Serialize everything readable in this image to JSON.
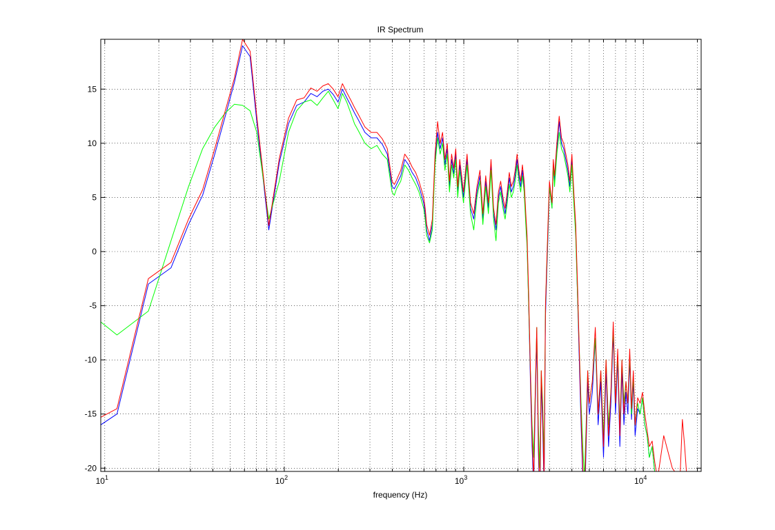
{
  "chart_data": {
    "type": "line",
    "title": "IR Spectrum",
    "xlabel": "frequency (Hz)",
    "ylabel": "",
    "x_scale": "log",
    "xlim": [
      9.5,
      21000
    ],
    "ylim": [
      -20.3,
      19.6
    ],
    "grid": true,
    "grid_style": "dotted",
    "legend": "none",
    "x_major_ticks": [
      {
        "value": 10,
        "base": "10",
        "exp": "1"
      },
      {
        "value": 100,
        "base": "10",
        "exp": "2"
      },
      {
        "value": 1000,
        "base": "10",
        "exp": "3"
      },
      {
        "value": 10000,
        "base": "10",
        "exp": "4"
      }
    ],
    "y_ticks": [
      {
        "value": 15,
        "label": "15"
      },
      {
        "value": 10,
        "label": "10"
      },
      {
        "value": 5,
        "label": "5"
      },
      {
        "value": 0,
        "label": "0"
      },
      {
        "value": -5,
        "label": "-5"
      },
      {
        "value": -10,
        "label": "-10"
      },
      {
        "value": -15,
        "label": "-15"
      },
      {
        "value": -20,
        "label": "-20"
      }
    ],
    "series": [
      {
        "color": "#0000ff",
        "x": [
          9.5,
          11.7,
          17.5,
          23.4,
          29.3,
          35.1,
          41.0,
          46.9,
          52.7,
          58.6,
          64.5,
          70.3,
          82.0,
          93.8,
          105.5,
          117.2,
          129.0,
          140.6,
          152.4,
          164.1,
          175.8,
          187.5,
          199.2,
          210.9,
          222.7,
          234.4,
          246.1,
          257.8,
          281.3,
          304.7,
          328.1,
          351.6,
          375.0,
          398.4,
          410.2,
          421.9,
          445.3,
          468.8,
          492.2,
          515.6,
          539.1,
          562.5,
          585.9,
          597.7,
          609.4,
          621.1,
          644.5,
          668.0,
          691.4,
          714.8,
          738.3,
          761.7,
          785.2,
          808.6,
          832.0,
          855.5,
          879.0,
          902.3,
          925.8,
          949.2,
          996.1,
          1043.0,
          1089.8,
          1136.7,
          1183.6,
          1230.5,
          1277.3,
          1324.2,
          1371.1,
          1418.0,
          1464.8,
          1511.7,
          1558.6,
          1605.5,
          1652.3,
          1699.2,
          1746.1,
          1793.0,
          1839.8,
          1886.7,
          1933.6,
          1980.5,
          2027.3,
          2074.2,
          2121.1,
          2168.0,
          2214.8,
          2250.0,
          2300.0,
          2350.0,
          2400.0,
          2450.0,
          2500.0,
          2550.0,
          2600.0,
          2650.0,
          2700.0,
          2750.0,
          2800.0,
          2850.0,
          2900.0,
          2950.0,
          3000.0,
          3050.0,
          3100.0,
          3150.0,
          3200.0,
          3300.0,
          3400.0,
          3500.0,
          3600.0,
          3700.0,
          3800.0,
          3900.0,
          4000.0,
          4100.0,
          4200.0,
          4300.0,
          4400.0,
          4500.0,
          4600.0,
          4700.0,
          4800.0,
          4900.0,
          5000.0,
          5200.0,
          5400.0,
          5600.0,
          5800.0,
          6000.0,
          6200.0,
          6400.0,
          6600.0,
          6800.0,
          7000.0,
          7200.0,
          7400.0,
          7600.0,
          7800.0,
          8000.0,
          8200.0,
          8400.0,
          8600.0,
          8800.0,
          9000.0,
          9300.0,
          9600.0,
          9900.0,
          10200.0,
          10500.0,
          10800.0,
          11200.0,
          11600.0,
          12000.0
        ],
        "y": [
          -16.0,
          -15.0,
          -3.0,
          -1.5,
          2.5,
          5.2,
          9.0,
          12.5,
          15.6,
          19.0,
          18.0,
          12.0,
          2.0,
          8.2,
          11.8,
          13.5,
          13.8,
          14.6,
          14.3,
          14.8,
          15.0,
          14.5,
          13.8,
          15.0,
          14.2,
          13.5,
          12.8,
          12.2,
          11.0,
          10.5,
          10.5,
          9.9,
          9.0,
          6.0,
          5.8,
          6.2,
          7.0,
          8.5,
          8.0,
          7.3,
          6.8,
          6.0,
          5.0,
          4.5,
          3.5,
          2.0,
          1.0,
          2.5,
          8.5,
          11.0,
          9.5,
          10.5,
          8.0,
          9.5,
          6.0,
          8.5,
          7.2,
          9.0,
          5.5,
          8.0,
          5.0,
          8.5,
          4.0,
          3.0,
          5.5,
          7.0,
          3.0,
          6.5,
          4.0,
          8.0,
          3.5,
          2.0,
          5.0,
          6.0,
          4.5,
          3.5,
          5.0,
          6.8,
          5.5,
          6.0,
          7.0,
          8.5,
          7.0,
          6.0,
          7.5,
          6.0,
          3.0,
          1.0,
          -5.0,
          -12.0,
          -18.0,
          -22.0,
          -14.0,
          -8.0,
          -18.0,
          -24.0,
          -12.0,
          -16.0,
          -22.0,
          -6.0,
          -2.0,
          2.0,
          6.0,
          5.0,
          4.0,
          8.0,
          6.5,
          9.5,
          12.0,
          10.0,
          9.5,
          8.5,
          7.5,
          6.0,
          8.5,
          5.0,
          2.0,
          -4.0,
          -10.0,
          -16.0,
          -21.0,
          -24.0,
          -18.0,
          -12.0,
          -15.0,
          -13.0,
          -8.0,
          -16.0,
          -12.0,
          -19.0,
          -11.0,
          -18.0,
          -14.0,
          -7.5,
          -15.0,
          -10.0,
          -18.0,
          -11.0,
          -16.0,
          -13.0,
          -15.0,
          -10.0,
          -15.5,
          -12.0,
          -17.0,
          -14.5,
          -15.0,
          -13.5,
          -16.0,
          -17.0,
          -19.0,
          -18.0,
          -20.5,
          -22.0
        ]
      },
      {
        "color": "#00ff00",
        "x": [
          9.5,
          11.7,
          17.5,
          23.4,
          29.3,
          35.1,
          41.0,
          46.9,
          52.7,
          58.6,
          64.5,
          70.3,
          82.0,
          93.8,
          105.5,
          117.2,
          129.0,
          140.6,
          152.4,
          164.1,
          175.8,
          187.5,
          199.2,
          210.9,
          222.7,
          234.4,
          246.1,
          257.8,
          281.3,
          304.7,
          328.1,
          351.6,
          375.0,
          398.4,
          410.2,
          421.9,
          445.3,
          468.8,
          492.2,
          515.6,
          539.1,
          562.5,
          585.9,
          597.7,
          609.4,
          621.1,
          644.5,
          668.0,
          691.4,
          714.8,
          738.3,
          761.7,
          785.2,
          808.6,
          832.0,
          855.5,
          879.0,
          902.3,
          925.8,
          949.2,
          996.1,
          1043.0,
          1089.8,
          1136.7,
          1183.6,
          1230.5,
          1277.3,
          1324.2,
          1371.1,
          1418.0,
          1464.8,
          1511.7,
          1558.6,
          1605.5,
          1652.3,
          1699.2,
          1746.1,
          1793.0,
          1839.8,
          1886.7,
          1933.6,
          1980.5,
          2027.3,
          2074.2,
          2121.1,
          2168.0,
          2214.8,
          2250.0,
          2300.0,
          2350.0,
          2400.0,
          2450.0,
          2500.0,
          2550.0,
          2600.0,
          2650.0,
          2700.0,
          2750.0,
          2800.0,
          2850.0,
          2900.0,
          2950.0,
          3000.0,
          3050.0,
          3100.0,
          3150.0,
          3200.0,
          3300.0,
          3400.0,
          3500.0,
          3600.0,
          3700.0,
          3800.0,
          3900.0,
          4000.0,
          4100.0,
          4200.0,
          4300.0,
          4400.0,
          4500.0,
          4600.0,
          4700.0,
          4800.0,
          4900.0,
          5000.0,
          5200.0,
          5400.0,
          5600.0,
          5800.0,
          6000.0,
          6200.0,
          6400.0,
          6600.0,
          6800.0,
          7000.0,
          7200.0,
          7400.0,
          7600.0,
          7800.0,
          8000.0,
          8200.0,
          8400.0,
          8600.0,
          8800.0,
          9000.0,
          9300.0,
          9600.0,
          9900.0,
          10200.0,
          10500.0,
          10800.0,
          11200.0,
          11600.0,
          12000.0
        ],
        "y": [
          -6.5,
          -7.7,
          -5.5,
          1.0,
          6.0,
          9.5,
          11.5,
          12.8,
          13.6,
          13.5,
          13.0,
          11.0,
          3.0,
          6.5,
          11.0,
          13.0,
          13.8,
          14.0,
          13.5,
          14.2,
          14.8,
          14.0,
          13.2,
          14.6,
          13.8,
          12.8,
          11.8,
          11.2,
          10.0,
          9.5,
          9.8,
          9.0,
          8.5,
          5.5,
          5.2,
          5.8,
          6.5,
          8.0,
          7.5,
          6.8,
          6.2,
          5.5,
          4.5,
          4.0,
          3.0,
          1.5,
          0.8,
          2.0,
          8.0,
          10.5,
          9.0,
          10.0,
          7.5,
          9.0,
          5.5,
          8.0,
          6.8,
          8.5,
          5.0,
          7.5,
          4.5,
          8.0,
          3.5,
          2.0,
          5.0,
          6.5,
          2.5,
          6.0,
          3.5,
          7.5,
          3.0,
          1.0,
          4.5,
          5.5,
          4.0,
          3.0,
          4.5,
          6.2,
          5.0,
          5.5,
          6.5,
          8.0,
          6.5,
          5.5,
          7.0,
          5.5,
          2.5,
          0.5,
          -5.0,
          -11.0,
          -16.0,
          -19.0,
          -13.0,
          -7.0,
          -16.0,
          -20.0,
          -11.0,
          -14.0,
          -19.0,
          -5.0,
          -1.5,
          2.5,
          6.0,
          5.0,
          4.0,
          8.0,
          6.0,
          9.0,
          11.0,
          9.5,
          9.0,
          8.0,
          7.0,
          5.5,
          8.0,
          4.5,
          1.5,
          -4.0,
          -9.0,
          -14.0,
          -18.0,
          -21.0,
          -16.0,
          -11.0,
          -14.0,
          -12.0,
          -8.0,
          -15.0,
          -11.0,
          -17.0,
          -10.0,
          -16.0,
          -13.0,
          -7.0,
          -14.0,
          -9.5,
          -16.0,
          -10.0,
          -14.0,
          -12.0,
          -14.0,
          -9.5,
          -15.0,
          -11.5,
          -16.0,
          -14.0,
          -15.0,
          -13.5,
          -16.0,
          -17.0,
          -19.0,
          -18.0,
          -20.5,
          -21.5
        ]
      },
      {
        "color": "#ff0000",
        "x": [
          9.5,
          11.7,
          17.5,
          23.4,
          29.3,
          35.1,
          41.0,
          46.9,
          52.7,
          58.6,
          64.5,
          70.3,
          82.0,
          93.8,
          105.5,
          117.2,
          129.0,
          140.6,
          152.4,
          164.1,
          175.8,
          187.5,
          199.2,
          210.9,
          222.7,
          234.4,
          246.1,
          257.8,
          281.3,
          304.7,
          328.1,
          351.6,
          375.0,
          398.4,
          410.2,
          421.9,
          445.3,
          468.8,
          492.2,
          515.6,
          539.1,
          562.5,
          585.9,
          597.7,
          609.4,
          621.1,
          644.5,
          668.0,
          691.4,
          714.8,
          738.3,
          761.7,
          785.2,
          808.6,
          832.0,
          855.5,
          879.0,
          902.3,
          925.8,
          949.2,
          996.1,
          1043.0,
          1089.8,
          1136.7,
          1183.6,
          1230.5,
          1277.3,
          1324.2,
          1371.1,
          1418.0,
          1464.8,
          1511.7,
          1558.6,
          1605.5,
          1652.3,
          1699.2,
          1746.1,
          1793.0,
          1839.8,
          1886.7,
          1933.6,
          1980.5,
          2027.3,
          2074.2,
          2121.1,
          2168.0,
          2214.8,
          2250.0,
          2300.0,
          2350.0,
          2400.0,
          2450.0,
          2500.0,
          2550.0,
          2600.0,
          2650.0,
          2700.0,
          2750.0,
          2800.0,
          2850.0,
          2900.0,
          2950.0,
          3000.0,
          3050.0,
          3100.0,
          3150.0,
          3200.0,
          3300.0,
          3400.0,
          3500.0,
          3600.0,
          3700.0,
          3800.0,
          3900.0,
          4000.0,
          4100.0,
          4200.0,
          4300.0,
          4400.0,
          4500.0,
          4600.0,
          4700.0,
          4800.0,
          4900.0,
          5000.0,
          5200.0,
          5400.0,
          5600.0,
          5800.0,
          6000.0,
          6200.0,
          6400.0,
          6600.0,
          6800.0,
          7000.0,
          7200.0,
          7400.0,
          7600.0,
          7800.0,
          8000.0,
          8200.0,
          8400.0,
          8600.0,
          8800.0,
          9000.0,
          9300.0,
          9600.0,
          9900.0,
          10200.0,
          10500.0,
          10800.0,
          11200.0,
          11600.0,
          12000.0,
          13000.0,
          14500.0,
          16000.0,
          16500.0,
          17000.0,
          17500.0
        ],
        "y": [
          -15.3,
          -14.5,
          -2.5,
          -1.0,
          3.0,
          5.7,
          9.5,
          13.0,
          16.0,
          19.6,
          18.5,
          12.5,
          2.4,
          8.6,
          12.3,
          14.0,
          14.2,
          15.1,
          14.8,
          15.3,
          15.5,
          15.0,
          14.3,
          15.5,
          14.7,
          14.0,
          13.3,
          12.7,
          11.5,
          11.0,
          11.0,
          10.4,
          9.5,
          6.5,
          6.2,
          6.6,
          7.5,
          9.0,
          8.5,
          7.8,
          7.3,
          6.5,
          5.5,
          5.0,
          4.0,
          2.5,
          1.5,
          3.0,
          9.0,
          12.0,
          10.0,
          11.0,
          8.5,
          10.0,
          6.5,
          9.0,
          7.7,
          9.5,
          6.0,
          8.5,
          5.5,
          9.0,
          4.5,
          3.5,
          6.0,
          7.5,
          3.5,
          7.0,
          4.5,
          8.5,
          4.0,
          2.5,
          5.5,
          6.5,
          5.0,
          4.0,
          5.5,
          7.3,
          6.0,
          6.5,
          7.5,
          9.0,
          7.5,
          6.5,
          8.0,
          6.5,
          3.5,
          1.5,
          -4.0,
          -11.0,
          -17.0,
          -21.0,
          -13.0,
          -7.0,
          -17.0,
          -23.0,
          -11.0,
          -15.0,
          -21.0,
          -5.0,
          -1.0,
          3.0,
          6.5,
          5.5,
          4.5,
          8.5,
          7.0,
          10.0,
          12.5,
          10.5,
          10.0,
          9.0,
          8.0,
          6.5,
          9.0,
          5.5,
          2.5,
          -3.0,
          -9.0,
          -15.0,
          -20.0,
          -23.0,
          -17.0,
          -11.0,
          -14.0,
          -12.0,
          -7.0,
          -15.0,
          -11.0,
          -18.0,
          -10.0,
          -17.0,
          -13.0,
          -6.5,
          -14.0,
          -9.0,
          -17.0,
          -10.0,
          -15.0,
          -12.0,
          -14.0,
          -9.0,
          -14.5,
          -11.0,
          -16.0,
          -13.5,
          -14.0,
          -13.0,
          -15.0,
          -16.5,
          -18.0,
          -17.5,
          -19.5,
          -21.0,
          -17.0,
          -20.0,
          -21.0,
          -15.5,
          -18.0,
          -21.0
        ]
      }
    ]
  }
}
